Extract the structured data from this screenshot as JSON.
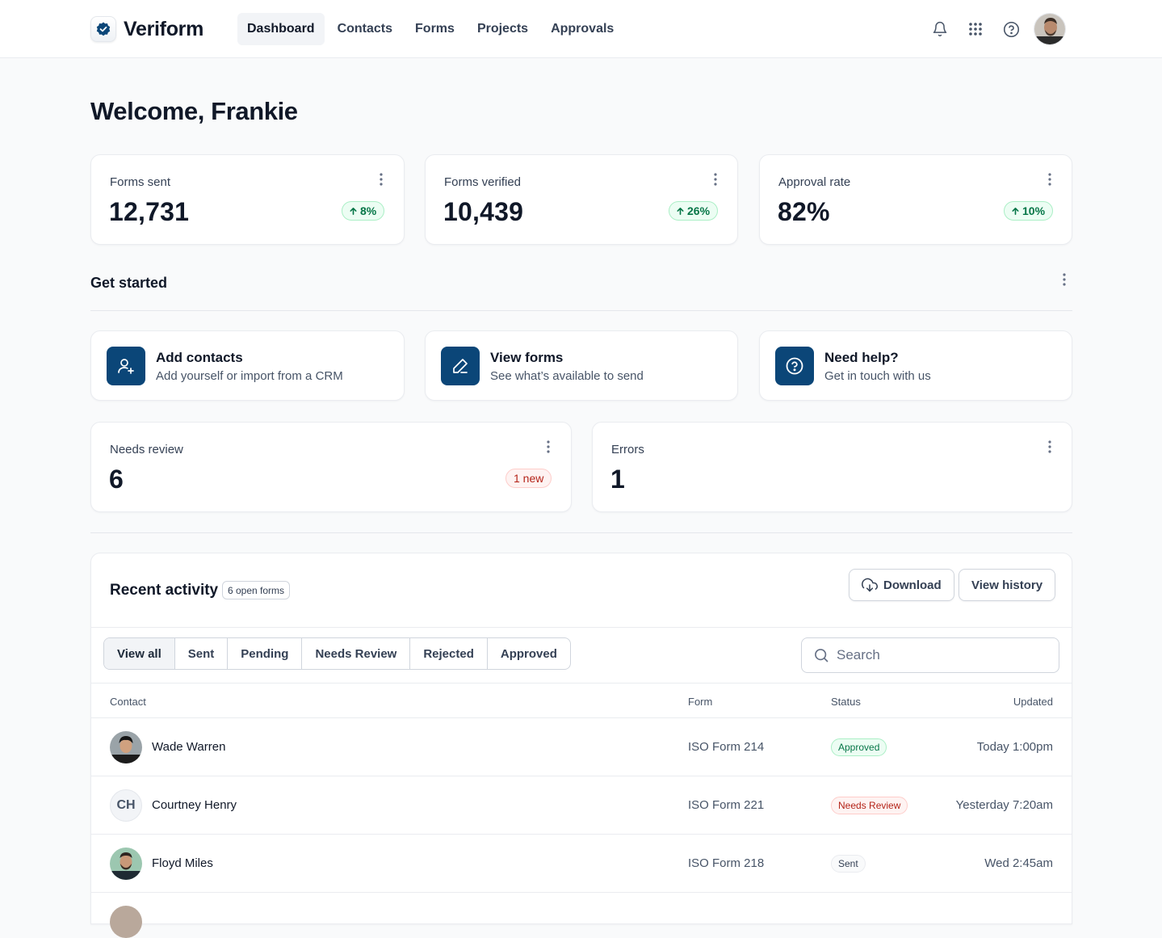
{
  "brand": {
    "name": "Veriform"
  },
  "nav": {
    "items": [
      {
        "label": "Dashboard",
        "active": true
      },
      {
        "label": "Contacts"
      },
      {
        "label": "Forms"
      },
      {
        "label": "Projects"
      },
      {
        "label": "Approvals"
      }
    ]
  },
  "header_icons": [
    "bell-icon",
    "apps-grid-icon",
    "help-circle-icon"
  ],
  "welcome": "Welcome, Frankie",
  "stats": [
    {
      "label": "Forms sent",
      "value": "12,731",
      "change": "8%"
    },
    {
      "label": "Forms verified",
      "value": "10,439",
      "change": "26%"
    },
    {
      "label": "Approval rate",
      "value": "82%",
      "change": "10%"
    }
  ],
  "get_started": {
    "title": "Get started",
    "cards": [
      {
        "title": "Add contacts",
        "subtitle": "Add yourself or import from a CRM",
        "icon": "user-plus-icon"
      },
      {
        "title": "View forms",
        "subtitle": "See what’s available to send",
        "icon": "pen-icon"
      },
      {
        "title": "Need help?",
        "subtitle": "Get in touch with us",
        "icon": "help-circle-icon"
      }
    ]
  },
  "needs_review": {
    "label": "Needs review",
    "value": "6",
    "badge": "1 new"
  },
  "errors": {
    "label": "Errors",
    "value": "1"
  },
  "recent_activity": {
    "title": "Recent activity",
    "count_badge": "6 open forms",
    "download_label": "Download",
    "history_label": "View history",
    "filters": [
      {
        "label": "View all",
        "active": true
      },
      {
        "label": "Sent"
      },
      {
        "label": "Pending"
      },
      {
        "label": "Needs Review"
      },
      {
        "label": "Rejected"
      },
      {
        "label": "Approved"
      }
    ],
    "search_placeholder": "Search",
    "columns": {
      "contact": "Contact",
      "form": "Form",
      "status": "Status",
      "updated": "Updated"
    },
    "rows": [
      {
        "name": "Wade Warren",
        "initials": "",
        "form": "ISO Form 214",
        "status": "Approved",
        "updated": "Today 1:00pm"
      },
      {
        "name": "Courtney Henry",
        "initials": "CH",
        "form": "ISO Form 221",
        "status": "Needs Review",
        "updated": "Yesterday 7:20am"
      },
      {
        "name": "Floyd Miles",
        "initials": "",
        "form": "ISO Form 218",
        "status": "Sent",
        "updated": "Wed 2:45am"
      }
    ]
  },
  "colors": {
    "accent": "#0b4678",
    "success_text": "#067647",
    "error_text": "#b42318"
  }
}
